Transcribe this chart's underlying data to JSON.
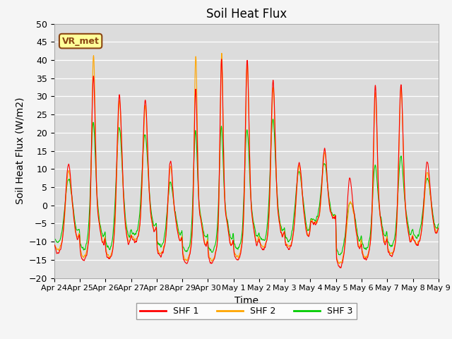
{
  "title": "Soil Heat Flux",
  "ylabel": "Soil Heat Flux (W/m2)",
  "xlabel": "Time",
  "ylim": [
    -20,
    50
  ],
  "colors": {
    "SHF 1": "#ff0000",
    "SHF 2": "#ffa500",
    "SHF 3": "#00cc00"
  },
  "legend_entries": [
    "SHF 1",
    "SHF 2",
    "SHF 3"
  ],
  "annotation_text": "VR_met",
  "annotation_color": "#8B4513",
  "annotation_bg": "#ffff99",
  "bg_color": "#dcdcdc",
  "x_tick_labels": [
    "Apr 24",
    "Apr 25",
    "Apr 26",
    "Apr 27",
    "Apr 28",
    "Apr 29",
    "Apr 30",
    "May 1",
    "May 2",
    "May 3",
    "May 4",
    "May 5",
    "May 6",
    "May 7",
    "May 8",
    "May 9"
  ],
  "n_days": 15,
  "title_fontsize": 12,
  "label_fontsize": 10,
  "tick_fontsize": 9
}
